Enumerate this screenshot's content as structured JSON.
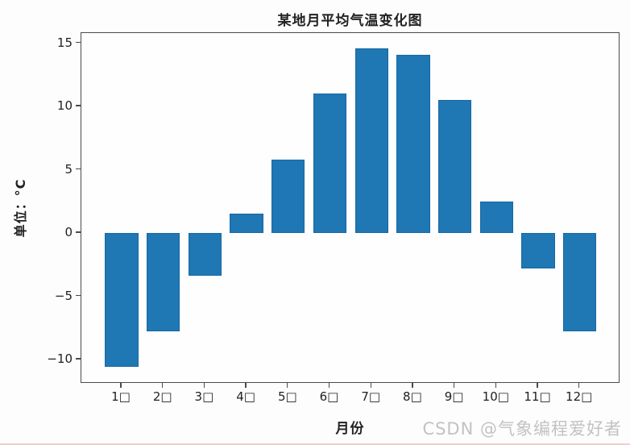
{
  "chart_data": {
    "type": "bar",
    "title": "某地月平均气温变化图",
    "xlabel": "月份",
    "ylabel": "单位：°C",
    "categories": [
      "1月",
      "2月",
      "3月",
      "4月",
      "5月",
      "6月",
      "7月",
      "8月",
      "9月",
      "10月",
      "11月",
      "12月"
    ],
    "tick_labels": [
      "1□",
      "2□",
      "3□",
      "4□",
      "5□",
      "6□",
      "7□",
      "8□",
      "9□",
      "10□",
      "11□",
      "12□"
    ],
    "values": [
      -10.6,
      -7.8,
      -3.4,
      1.5,
      5.8,
      11.0,
      14.6,
      14.1,
      10.5,
      2.5,
      -2.8,
      -7.8
    ],
    "yticks": [
      "15",
      "10",
      "5",
      "0",
      "−5",
      "−10"
    ],
    "ylim": [
      -11.9,
      15.8
    ],
    "grid": false,
    "legend": null,
    "bar_color": "#1f77b4",
    "bar_edge_color": "#1868a2"
  },
  "watermark": "CSDN @气象编程爱好者",
  "colors": {
    "spine": "#4b4b4b",
    "text": "#1f1f1f",
    "watermark_text": "#c2c2c2",
    "background": "#fdfdfe",
    "bottom_edge": "#f2cccc"
  }
}
